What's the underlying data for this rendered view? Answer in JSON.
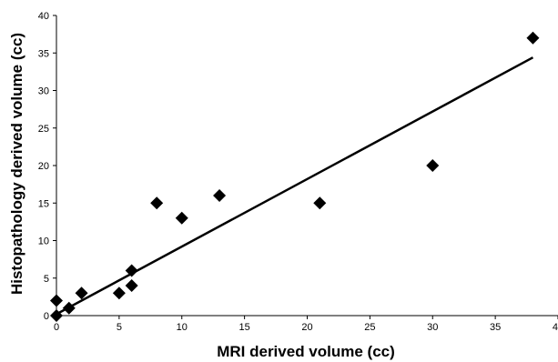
{
  "chart_data": {
    "type": "scatter",
    "title": "",
    "xlabel": "MRI derived volume (cc)",
    "ylabel": "Histopathology derived volume (cc)",
    "xlim": [
      0,
      40
    ],
    "ylim": [
      0,
      40
    ],
    "x_ticks": [
      0,
      5,
      10,
      15,
      20,
      25,
      30,
      35,
      40
    ],
    "y_ticks": [
      0,
      5,
      10,
      15,
      20,
      25,
      30,
      35,
      40
    ],
    "grid": false,
    "legend": "none",
    "marker": "diamond",
    "marker_color": "#000000",
    "series": [
      {
        "points": [
          {
            "x": 0,
            "y": 0
          },
          {
            "x": 0,
            "y": 2
          },
          {
            "x": 1,
            "y": 1
          },
          {
            "x": 2,
            "y": 3
          },
          {
            "x": 5,
            "y": 3
          },
          {
            "x": 6,
            "y": 4
          },
          {
            "x": 6,
            "y": 6
          },
          {
            "x": 8,
            "y": 15
          },
          {
            "x": 10,
            "y": 13
          },
          {
            "x": 13,
            "y": 16
          },
          {
            "x": 21,
            "y": 15
          },
          {
            "x": 30,
            "y": 20
          },
          {
            "x": 38,
            "y": 37
          }
        ]
      }
    ],
    "trendline": {
      "type": "linear",
      "from": {
        "x": 0,
        "y": 0.2
      },
      "to": {
        "x": 38,
        "y": 34.4
      },
      "color": "#000000"
    }
  }
}
